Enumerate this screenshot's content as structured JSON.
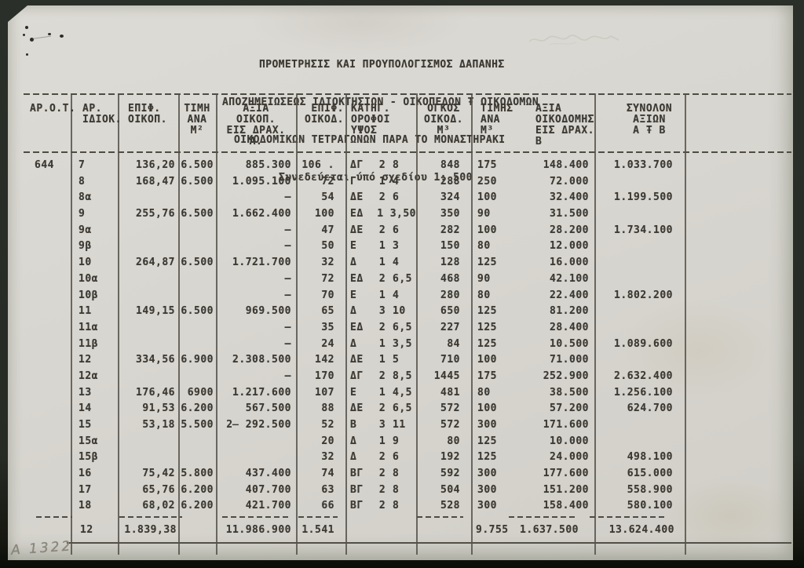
{
  "title": {
    "lines": [
      "ΠΡΟΜΕΤΡΗΣΙΣ ΚΑΙ ΠΡΟΥΠΟΛΟΓΙΣΜΟΣ ΔΑΠΑΝΗΣ",
      "ΑΠΟΖΗΜΕΙΩΣΕΩΣ ΙΔΙΟΚΤΗΣΙΩΝ - ΟΙΚΟΠΕΔΩΝ Ŧ ΟΙΚΟΔΟΜΩΝ",
      "ΟΙΚΟΔΟΜΙΚΩΝ ΤΕΤΡΑΓΩΝΩΝ ΠΑΡΑ ΤΟ ΜΟΝΑΣΤΗΡΑΚΙ",
      "Συνεδεύεται ύπό σχεδίου 1: 500"
    ]
  },
  "table": {
    "headers": {
      "arot": "ΑΡ.Ο.Τ.",
      "idiok": "ΑΡ.\nΙΔΙΟΚ.",
      "epif_oikop": "ΕΠΙΦ.\nΟΙΚΟΠ.",
      "timi_ana_m2": "ΤΙΜΗ\nΑΝΑ\nΜ²",
      "axia_oikop": "ΑΞΙΑ\nΟΙΚΟΠ.\nΕΙΣ ΔΡΑΧ.\nΑ.",
      "epif_oikod": "ΕΠΙΦ.\nΟΙΚΟΔ.",
      "katig": "ΚΑΤΗΓ.\nΟΡΟΦΟΙ\nΥΨΟΣ",
      "ogkos": "ΟΓΚΟΣ\nΟΙΚΟΔ.\nΜ³",
      "timis_ana_m3": "ΤΙΜΗΣ\nΑΝΑ\nΜ³",
      "axia_oikod": "ΑΞΙΑ\nΟΙΚΟΔΟΜΗΣ\nΕΙΣ ΔΡΑΧ.\nΒ",
      "synolon": "ΣΥΝΟΛΟΝ\nΑΞΙΩΝ\nΑ Ŧ Β"
    },
    "rows": [
      {
        "aot": "644",
        "idk": "7",
        "eop": "136,20",
        "tim": "6.500",
        "axa": "885.300",
        "eod": "106 .",
        "kat": "ΔΓ",
        "orf": "2",
        "yps": "8",
        "ogk": "848",
        "tms": "175",
        "axb": "148.400",
        "syn": "1.033.700"
      },
      {
        "aot": "",
        "idk": "8",
        "eop": "168,47",
        "tim": "6.500",
        "axa": "1.095.100",
        "eod": "72",
        "kat": "Γ",
        "orf": "1",
        "yps": "4",
        "ogk": "288",
        "tms": "250",
        "axb": "72.000",
        "syn": ""
      },
      {
        "aot": "",
        "idk": "8α",
        "eop": "",
        "tim": "",
        "axa": "–",
        "eod": "54",
        "kat": "ΔΕ",
        "orf": "2",
        "yps": "6",
        "ogk": "324",
        "tms": "100",
        "axb": "32.400",
        "syn": "1.199.500"
      },
      {
        "aot": "",
        "idk": "9",
        "eop": "255,76",
        "tim": "6.500",
        "axa": "1.662.400",
        "eod": "100",
        "kat": "ΕΔ",
        "orf": "1",
        "yps": "3,50",
        "ogk": "350",
        "tms": "90",
        "axb": "31.500",
        "syn": ""
      },
      {
        "aot": "",
        "idk": "9α",
        "eop": "",
        "tim": "",
        "axa": "–",
        "eod": "47",
        "kat": "ΔΕ",
        "orf": "2",
        "yps": "6",
        "ogk": "282",
        "tms": "100",
        "axb": "28.200",
        "syn": "1.734.100"
      },
      {
        "aot": "",
        "idk": "9β",
        "eop": "",
        "tim": "",
        "axa": "–",
        "eod": "50",
        "kat": "Ε",
        "orf": "1",
        "yps": "3",
        "ogk": "150",
        "tms": "80",
        "axb": "12.000",
        "syn": ""
      },
      {
        "aot": "",
        "idk": "10",
        "eop": "264,87",
        "tim": "6.500",
        "axa": "1.721.700",
        "eod": "32",
        "kat": "Δ",
        "orf": "1",
        "yps": "4",
        "ogk": "128",
        "tms": "125",
        "axb": "16.000",
        "syn": ""
      },
      {
        "aot": "",
        "idk": "10α",
        "eop": "",
        "tim": "",
        "axa": "–",
        "eod": "72",
        "kat": "ΕΔ",
        "orf": "2",
        "yps": "6,5",
        "ogk": "468",
        "tms": "90",
        "axb": "42.100",
        "syn": ""
      },
      {
        "aot": "",
        "idk": "10β",
        "eop": "",
        "tim": "",
        "axa": "–",
        "eod": "70",
        "kat": "Ε",
        "orf": "1",
        "yps": "4",
        "ogk": "280",
        "tms": "80",
        "axb": "22.400",
        "syn": "1.802.200"
      },
      {
        "aot": "",
        "idk": "11",
        "eop": "149,15",
        "tim": "6.500",
        "axa": "969.500",
        "eod": "65",
        "kat": "Δ",
        "orf": "3",
        "yps": "10",
        "ogk": "650",
        "tms": "125",
        "axb": "81.200",
        "syn": ""
      },
      {
        "aot": "",
        "idk": "11α",
        "eop": "",
        "tim": "",
        "axa": "–",
        "eod": "35",
        "kat": "ΕΔ",
        "orf": "2",
        "yps": "6,5",
        "ogk": "227",
        "tms": "125",
        "axb": "28.400",
        "syn": ""
      },
      {
        "aot": "",
        "idk": "11β",
        "eop": "",
        "tim": "",
        "axa": "–",
        "eod": "24",
        "kat": "Δ",
        "orf": "1",
        "yps": "3,5",
        "ogk": "84",
        "tms": "125",
        "axb": "10.500",
        "syn": "1.089.600"
      },
      {
        "aot": "",
        "idk": "12",
        "eop": "334,56",
        "tim": "6.900",
        "axa": "2.308.500",
        "eod": "142",
        "kat": "ΔΕ",
        "orf": "1",
        "yps": "5",
        "ogk": "710",
        "tms": "100",
        "axb": "71.000",
        "syn": ""
      },
      {
        "aot": "",
        "idk": "12α",
        "eop": "",
        "tim": "",
        "axa": "–",
        "eod": "170",
        "kat": "ΔΓ",
        "orf": "2",
        "yps": "8,5",
        "ogk": "1445",
        "tms": "175",
        "axb": "252.900",
        "syn": "2.632.400"
      },
      {
        "aot": "",
        "idk": "13",
        "eop": "176,46",
        "tim": "6900",
        "axa": "1.217.600",
        "eod": "107",
        "kat": "Ε",
        "orf": "1",
        "yps": "4,5",
        "ogk": "481",
        "tms": "80",
        "axb": "38.500",
        "syn": "1.256.100"
      },
      {
        "aot": "",
        "idk": "14",
        "eop": "91,53",
        "tim": "6.200",
        "axa": "567.500",
        "eod": "88",
        "kat": "ΔΕ",
        "orf": "2",
        "yps": "6,5",
        "ogk": "572",
        "tms": "100",
        "axb": "57.200",
        "syn": "624.700"
      },
      {
        "aot": "",
        "idk": "15",
        "eop": "53,18",
        "tim": "5.500",
        "axa": "2̶ 292.500",
        "eod": "52",
        "kat": "Β",
        "orf": "3",
        "yps": "11",
        "ogk": "572",
        "tms": "300",
        "axb": "171.600",
        "syn": ""
      },
      {
        "aot": "",
        "idk": "15α",
        "eop": "",
        "tim": "",
        "axa": "",
        "eod": "20",
        "kat": "Δ",
        "orf": "1",
        "yps": "9",
        "ogk": "80",
        "tms": "125",
        "axb": "10.000",
        "syn": ""
      },
      {
        "aot": "",
        "idk": "15β",
        "eop": "",
        "tim": "",
        "axa": "",
        "eod": "32",
        "kat": "Δ",
        "orf": "2",
        "yps": "6",
        "ogk": "192",
        "tms": "125",
        "axb": "24.000",
        "syn": "498.100"
      },
      {
        "aot": "",
        "idk": "16",
        "eop": "75,42",
        "tim": "5.800",
        "axa": "437.400",
        "eod": "74",
        "kat": "ΒΓ",
        "orf": "2",
        "yps": "8",
        "ogk": "592",
        "tms": "300",
        "axb": "177.600",
        "syn": "615.000"
      },
      {
        "aot": "",
        "idk": "17",
        "eop": "65,76",
        "tim": "6.200",
        "axa": "407.700",
        "eod": "63",
        "kat": "ΒΓ",
        "orf": "2",
        "yps": "8",
        "ogk": "504",
        "tms": "300",
        "axb": "151.200",
        "syn": "558.900"
      },
      {
        "aot": "",
        "idk": "18",
        "eop": "68,02",
        "tim": "6.200",
        "axa": "421.700",
        "eod": "66",
        "kat": "ΒΓ",
        "orf": "2",
        "yps": "8",
        "ogk": "528",
        "tms": "300",
        "axb": "158.400",
        "syn": "580.100"
      }
    ],
    "totals": {
      "count": "12",
      "eop": "1.839,38",
      "axa": "11.986.900",
      "eod": "1.541",
      "ogk": "9.755",
      "axb": "1.637.500",
      "syn": "13.624.400"
    }
  },
  "annotations": {
    "handwritten_code": "A 1322"
  },
  "colors": {
    "paper": "#d8d6d0",
    "ink": "#3c3a33",
    "line": "#55524a",
    "pencil": "#8b887c",
    "background": "#272b25"
  }
}
